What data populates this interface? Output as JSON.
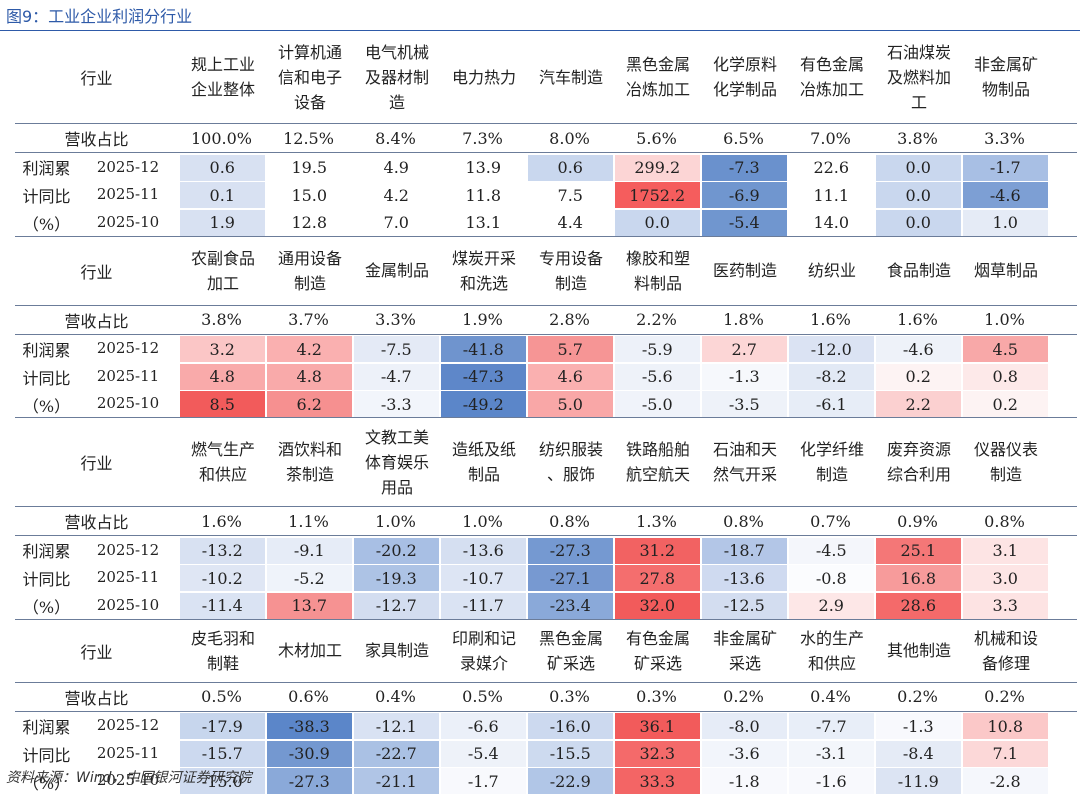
{
  "title": "图9：工业企业利润分行业",
  "source": "资料来源：Wind，中国银河证券研究院",
  "labels": {
    "industry": "行业",
    "share": "营收占比",
    "profit_lines": [
      "利润累",
      "计同比",
      "（%）"
    ],
    "periods": [
      "2025-12",
      "2025-11",
      "2025-10"
    ]
  },
  "color_scale": {
    "negative_max": "#5b86c9",
    "neutral": "#ffffff",
    "positive_max": "#f25b5b"
  },
  "blocks": [
    {
      "industries": [
        "规上工业\n企业整体",
        "计算机通\n信和电子\n设备",
        "电气机械\n及器材制\n造",
        "电力热力",
        "汽车制造",
        "黑色金属\n冶炼加工",
        "化学原料\n化学制品",
        "有色金属\n冶炼加工",
        "石油煤炭\n及燃料加\n工",
        "非金属矿\n物制品"
      ],
      "share": [
        "100.0%",
        "12.5%",
        "8.4%",
        "7.3%",
        "8.0%",
        "5.6%",
        "6.5%",
        "7.0%",
        "3.8%",
        "3.3%"
      ],
      "rows": [
        {
          "period": "2025-12",
          "values": [
            "0.6",
            "19.5",
            "4.9",
            "13.9",
            "0.6",
            "299.2",
            "-7.3",
            "22.6",
            "0.0",
            "-1.7"
          ]
        },
        {
          "period": "2025-11",
          "values": [
            "0.1",
            "15.0",
            "4.2",
            "11.8",
            "7.5",
            "1752.2",
            "-6.9",
            "11.1",
            "0.0",
            "-4.6"
          ]
        },
        {
          "period": "2025-10",
          "values": [
            "1.9",
            "12.8",
            "7.0",
            "13.1",
            "4.4",
            "0.0",
            "-5.4",
            "14.0",
            "0.0",
            "1.0"
          ]
        }
      ],
      "fills": [
        [
          "#d8e1f2",
          "#ffffff",
          "#ffffff",
          "#ffffff",
          "#c9d7ee",
          "#fcd5d5",
          "#6a91cd",
          "#ffffff",
          "#c9d7ee",
          "#a8bfe4"
        ],
        [
          "#d8e1f2",
          "#ffffff",
          "#ffffff",
          "#ffffff",
          "#ffffff",
          "#f55d5d",
          "#7096cf",
          "#ffffff",
          "#c9d7ee",
          "#7d9fd4"
        ],
        [
          "#d8e1f2",
          "#ffffff",
          "#ffffff",
          "#ffffff",
          "#ffffff",
          "#c9d7ee",
          "#7096cf",
          "#ffffff",
          "#c9d7ee",
          "#e5ebf6"
        ]
      ]
    },
    {
      "industries": [
        "农副食品\n加工",
        "通用设备\n制造",
        "金属制品",
        "煤炭开采\n和洗选",
        "专用设备\n制造",
        "橡胶和塑\n料制品",
        "医药制造",
        "纺织业",
        "食品制造",
        "烟草制品"
      ],
      "share": [
        "3.8%",
        "3.7%",
        "3.3%",
        "1.9%",
        "2.8%",
        "2.2%",
        "1.8%",
        "1.6%",
        "1.6%",
        "1.0%"
      ],
      "rows": [
        {
          "period": "2025-12",
          "values": [
            "3.2",
            "4.2",
            "-7.5",
            "-41.8",
            "5.7",
            "-5.9",
            "2.7",
            "-12.0",
            "-4.6",
            "4.5"
          ]
        },
        {
          "period": "2025-11",
          "values": [
            "4.8",
            "4.8",
            "-4.7",
            "-47.3",
            "4.6",
            "-5.6",
            "-1.3",
            "-8.2",
            "0.2",
            "0.8"
          ]
        },
        {
          "period": "2025-10",
          "values": [
            "8.5",
            "6.2",
            "-3.3",
            "-49.2",
            "5.0",
            "-5.0",
            "-3.5",
            "-6.1",
            "2.2",
            "0.2"
          ]
        }
      ],
      "fills": [
        [
          "#fbc6c6",
          "#fab0b0",
          "#e4eaf6",
          "#6f94ce",
          "#f69595",
          "#edf1f9",
          "#fcd6d6",
          "#dbe3f3",
          "#eef2f9",
          "#f8a8a8"
        ],
        [
          "#f9aaaa",
          "#f9aaaa",
          "#edf1f9",
          "#5e87c9",
          "#fab0b0",
          "#eef2f9",
          "#f6f8fc",
          "#e2e9f5",
          "#fdf3f3",
          "#fde9e9"
        ],
        [
          "#f25b5b",
          "#f69090",
          "#f2f5fb",
          "#5b86c9",
          "#f9a7a7",
          "#f0f3fa",
          "#eef2f9",
          "#e7edf7",
          "#fbd0d0",
          "#fdf3f3"
        ]
      ]
    },
    {
      "industries": [
        "燃气生产\n和供应",
        "酒饮料和\n茶制造",
        "文教工美\n体育娱乐\n用品",
        "造纸及纸\n制品",
        "纺织服装\n、服饰",
        "铁路船舶\n航空航天",
        "石油和天\n然气开采",
        "化学纤维\n制造",
        "废弃资源\n综合利用",
        "仪器仪表\n制造"
      ],
      "share": [
        "1.6%",
        "1.1%",
        "1.0%",
        "1.0%",
        "0.8%",
        "1.3%",
        "0.8%",
        "0.7%",
        "0.9%",
        "0.8%"
      ],
      "rows": [
        {
          "period": "2025-12",
          "values": [
            "-13.2",
            "-9.1",
            "-20.2",
            "-13.6",
            "-27.3",
            "31.2",
            "-18.7",
            "-4.5",
            "25.1",
            "3.1"
          ]
        },
        {
          "period": "2025-11",
          "values": [
            "-10.2",
            "-5.2",
            "-19.3",
            "-10.7",
            "-27.1",
            "27.8",
            "-13.6",
            "-0.8",
            "16.8",
            "3.0"
          ]
        },
        {
          "period": "2025-10",
          "values": [
            "-11.4",
            "13.7",
            "-12.7",
            "-11.7",
            "-23.4",
            "32.0",
            "-12.5",
            "2.9",
            "28.6",
            "3.3"
          ]
        }
      ],
      "fills": [
        [
          "#d8e1f2",
          "#e6ecf7",
          "#a8bfe4",
          "#d5dff1",
          "#7599d1",
          "#f26262",
          "#b3c6e7",
          "#f4f6fb",
          "#f47777",
          "#fde4e4"
        ],
        [
          "#dfe6f4",
          "#eff3fa",
          "#adc3e5",
          "#dde5f4",
          "#7799d1",
          "#f46e6e",
          "#cfdaf0",
          "#fbfcfe",
          "#f79b9b",
          "#fde5e5"
        ],
        [
          "#dae3f3",
          "#f69292",
          "#d3ddf0",
          "#dae3f3",
          "#8aa9d9",
          "#f25b5b",
          "#d3ddf0",
          "#fde7e7",
          "#f46a6a",
          "#fde3e3"
        ]
      ]
    },
    {
      "industries": [
        "皮毛羽和\n制鞋",
        "木材加工",
        "家具制造",
        "印刷和记\n录媒介",
        "黑色金属\n矿采选",
        "有色金属\n矿采选",
        "非金属矿\n采选",
        "水的生产\n和供应",
        "其他制造",
        "机械和设\n备修理"
      ],
      "share": [
        "0.5%",
        "0.6%",
        "0.4%",
        "0.5%",
        "0.3%",
        "0.3%",
        "0.2%",
        "0.4%",
        "0.2%",
        "0.2%"
      ],
      "rows": [
        {
          "period": "2025-12",
          "values": [
            "-17.9",
            "-38.3",
            "-12.1",
            "-6.6",
            "-16.0",
            "36.1",
            "-8.0",
            "-7.7",
            "-1.3",
            "10.8"
          ]
        },
        {
          "period": "2025-11",
          "values": [
            "-15.7",
            "-30.9",
            "-22.7",
            "-5.4",
            "-15.5",
            "32.3",
            "-3.6",
            "-3.1",
            "-8.4",
            "7.1"
          ]
        },
        {
          "period": "2025-10",
          "values": [
            "-15.0",
            "-27.3",
            "-21.1",
            "-1.7",
            "-22.9",
            "33.3",
            "-1.8",
            "-1.6",
            "-11.9",
            "-2.8"
          ]
        }
      ],
      "fills": [
        [
          "#c7d6ed",
          "#5b86c9",
          "#d9e2f3",
          "#ebf0f9",
          "#ccd9ef",
          "#f25b5b",
          "#e6ecf7",
          "#e8eef8",
          "#f8f9fd",
          "#fbc8c8"
        ],
        [
          "#ccd9ef",
          "#7498d0",
          "#aac1e4",
          "#eef2f9",
          "#cddaef",
          "#f46a6a",
          "#f2f5fb",
          "#f3f6fb",
          "#e5ebf6",
          "#fcd8d8"
        ],
        [
          "#cfdbf0",
          "#8aa9d9",
          "#b0c5e6",
          "#f8f9fd",
          "#b1c6e7",
          "#f36565",
          "#f8f9fd",
          "#f8f9fd",
          "#dce4f3",
          "#f5f7fc"
        ]
      ]
    }
  ]
}
